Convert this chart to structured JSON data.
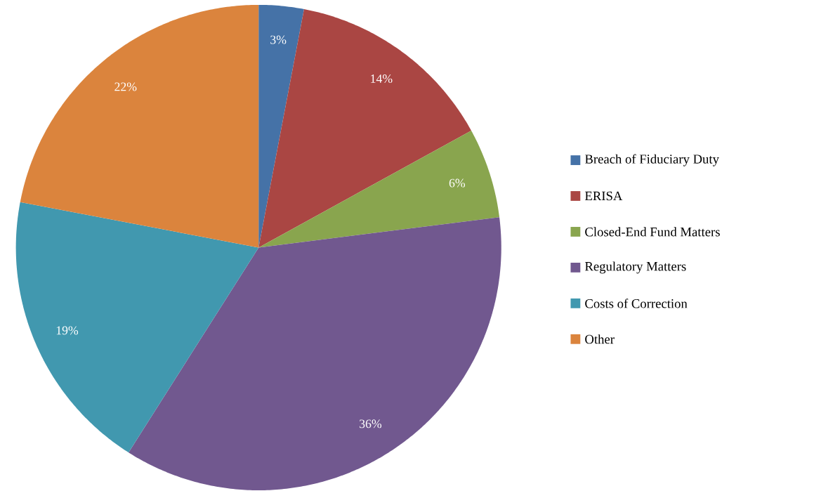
{
  "chart_data": {
    "type": "pie",
    "categories": [
      "Breach of Fiduciary Duty",
      "ERISA",
      "Closed-End Fund Matters",
      "Regulatory Matters",
      "Costs of Correction",
      "Other"
    ],
    "values": [
      3,
      14,
      6,
      36,
      19,
      22
    ],
    "value_labels": [
      "3%",
      "14%",
      "6%",
      "36%",
      "19%",
      "22%"
    ],
    "colors": [
      "#4572a7",
      "#aa4643",
      "#89a54e",
      "#71588f",
      "#4198af",
      "#db843d"
    ],
    "legend": "right"
  }
}
